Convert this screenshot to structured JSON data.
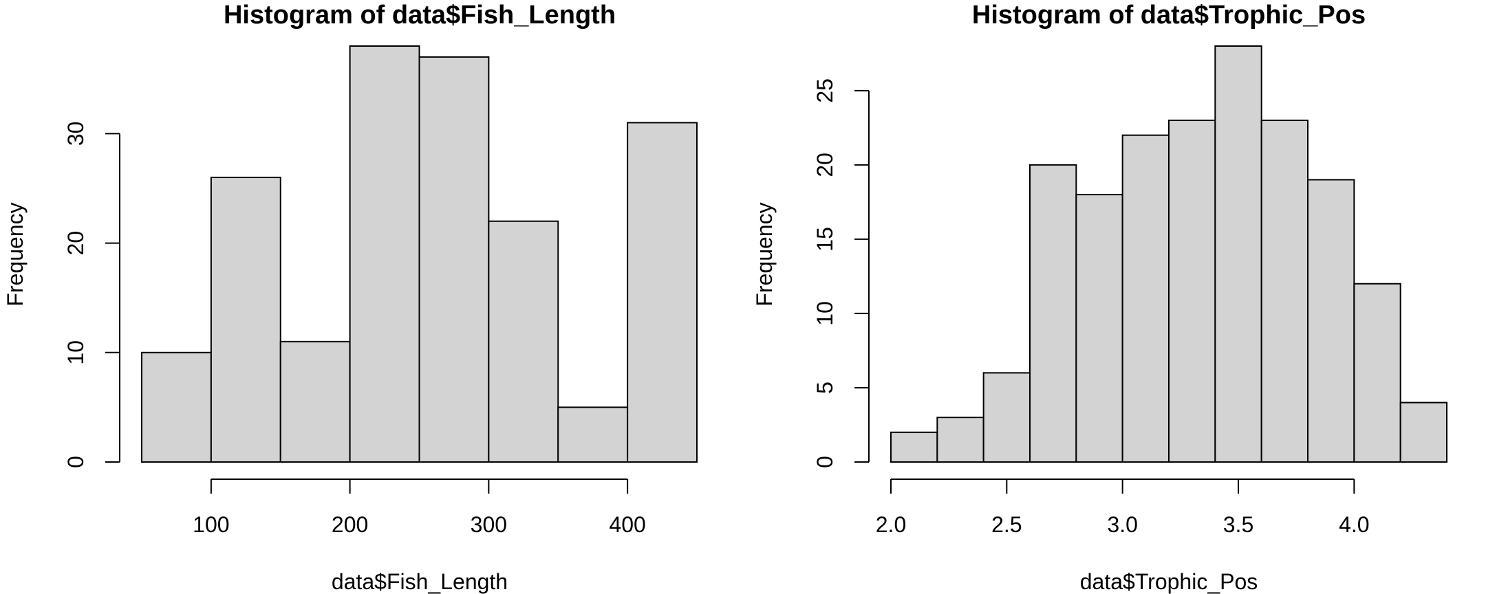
{
  "chart_data": [
    {
      "type": "bar",
      "title": "Histogram of data$Fish_Length",
      "xlabel": "data$Fish_Length",
      "ylabel": "Frequency",
      "bins": [
        [
          50,
          100
        ],
        [
          100,
          150
        ],
        [
          150,
          200
        ],
        [
          200,
          250
        ],
        [
          250,
          300
        ],
        [
          300,
          350
        ],
        [
          350,
          400
        ],
        [
          400,
          450
        ]
      ],
      "values": [
        10,
        26,
        11,
        38,
        37,
        22,
        5,
        31
      ],
      "xticks": [
        100,
        200,
        300,
        400
      ],
      "xtick_labels": [
        "100",
        "200",
        "300",
        "400"
      ],
      "yticks": [
        0,
        10,
        20,
        30
      ],
      "ytick_labels": [
        "0",
        "10",
        "20",
        "30"
      ],
      "xlim": [
        50,
        450
      ],
      "ylim": [
        0,
        38
      ],
      "bar_color": "#d3d3d3",
      "grid": false
    },
    {
      "type": "bar",
      "title": "Histogram of data$Trophic_Pos",
      "xlabel": "data$Trophic_Pos",
      "ylabel": "Frequency",
      "bins": [
        [
          2.0,
          2.2
        ],
        [
          2.2,
          2.4
        ],
        [
          2.4,
          2.6
        ],
        [
          2.6,
          2.8
        ],
        [
          2.8,
          3.0
        ],
        [
          3.0,
          3.2
        ],
        [
          3.2,
          3.4
        ],
        [
          3.4,
          3.6
        ],
        [
          3.6,
          3.8
        ],
        [
          3.8,
          4.0
        ],
        [
          4.0,
          4.2
        ],
        [
          4.2,
          4.4
        ]
      ],
      "values": [
        2,
        3,
        6,
        20,
        18,
        22,
        23,
        28,
        23,
        19,
        12,
        4
      ],
      "xticks": [
        2.0,
        2.5,
        3.0,
        3.5,
        4.0
      ],
      "xtick_labels": [
        "2.0",
        "2.5",
        "3.0",
        "3.5",
        "4.0"
      ],
      "yticks": [
        0,
        5,
        10,
        15,
        20,
        25
      ],
      "ytick_labels": [
        "0",
        "5",
        "10",
        "15",
        "20",
        "25"
      ],
      "xlim": [
        2.0,
        4.4
      ],
      "ylim": [
        0,
        28
      ],
      "bar_color": "#d3d3d3",
      "grid": false
    }
  ]
}
